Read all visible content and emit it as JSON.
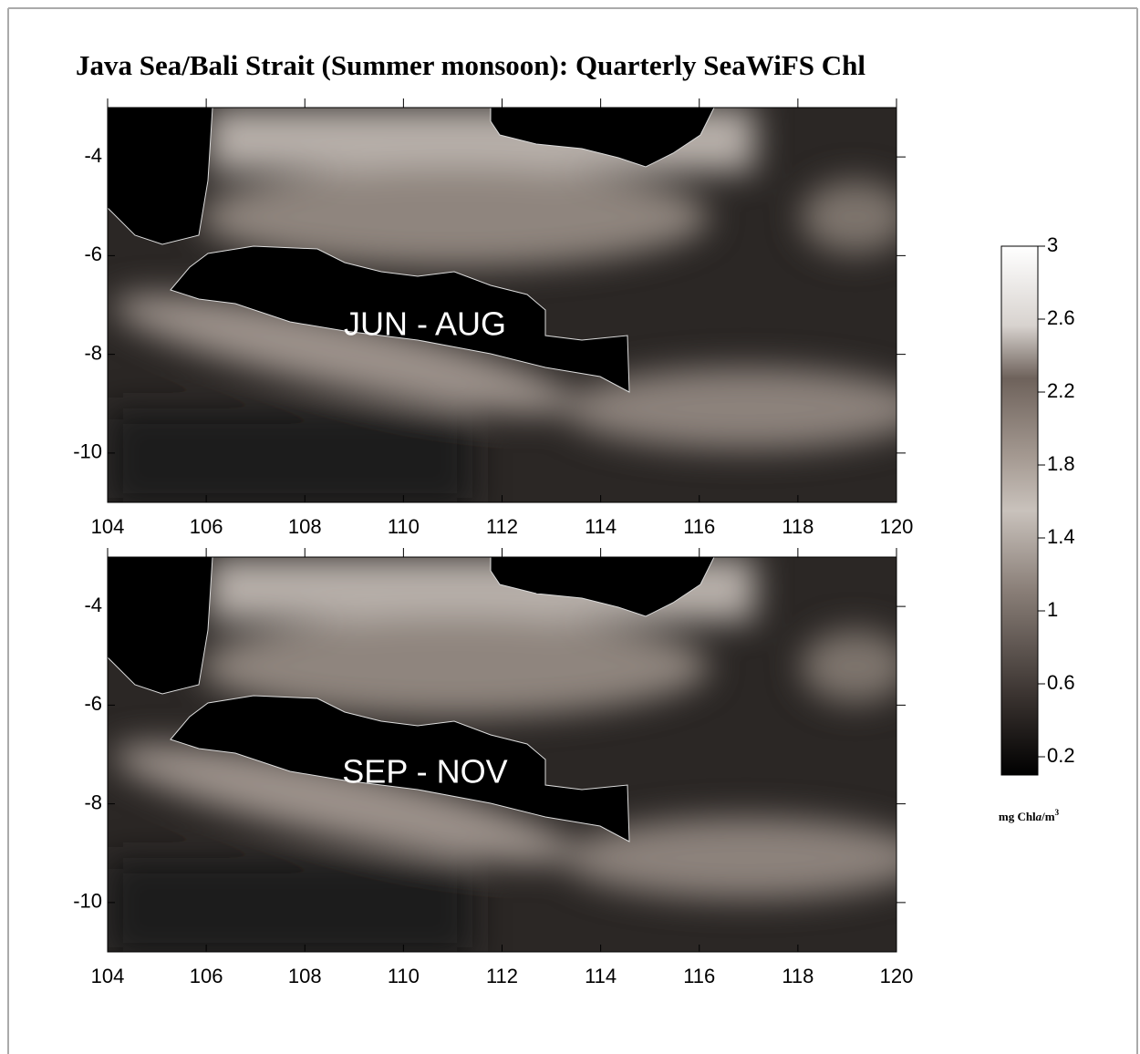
{
  "chart_data": {
    "type": "map",
    "title": "Java Sea/Bali Strait (Summer monsoon): Quarterly SeaWiFS Chl",
    "panels": [
      {
        "label": "JUN - AUG",
        "xlim": [
          104,
          120
        ],
        "ylim": [
          -11,
          -3
        ],
        "xticks": [
          104,
          106,
          108,
          110,
          112,
          114,
          116,
          118,
          120
        ],
        "yticks": [
          -4,
          -6,
          -8,
          -10
        ]
      },
      {
        "label": "SEP - NOV",
        "xlim": [
          104,
          120
        ],
        "ylim": [
          -11,
          -3
        ],
        "xticks": [
          104,
          106,
          108,
          110,
          112,
          114,
          116,
          118,
          120
        ],
        "yticks": [
          -4,
          -6,
          -8,
          -10
        ]
      }
    ],
    "colorbar": {
      "lim": [
        0.1,
        3
      ],
      "ticks": [
        0.2,
        0.6,
        1,
        1.4,
        1.8,
        2.2,
        2.6,
        3
      ],
      "unit": {
        "prefix": "mg Chl",
        "italic": "a",
        "suffix": "/m",
        "sup": "3"
      }
    }
  }
}
